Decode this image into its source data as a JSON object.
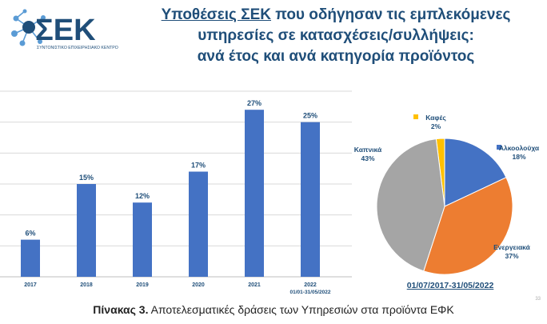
{
  "logo": {
    "text": "ΣΕΚ",
    "subtitle": "ΣΥΝΤΟΝΙΣΤΙΚΟ ΕΠΙΧΕΙΡΗΣΙΑΚΟ ΚΕΝΤΡΟ",
    "icon": "molecule-network-icon",
    "color": "#1f4e79",
    "accent": "#5a9bd5"
  },
  "title": {
    "line1_underlined": "Υποθέσεις ΣΕΚ",
    "line1_rest": " που οδήγησαν τις εμπλεκόμενες",
    "line2": "υπηρεσίες σε  κατασχέσεις/συλλήψεις:",
    "line3": "ανά έτος και ανά κατηγορία προϊόντος",
    "color": "#1f4e79"
  },
  "chart_data": [
    {
      "type": "bar",
      "categories": [
        "2017",
        "2018",
        "2019",
        "2020",
        "2021",
        "2022"
      ],
      "category_sublabels": [
        "",
        "",
        "",
        "",
        "",
        "01/01-31/05/2022"
      ],
      "values": [
        6,
        15,
        12,
        17,
        27,
        25
      ],
      "value_labels": [
        "6%",
        "15%",
        "12%",
        "17%",
        "27%",
        "25%"
      ],
      "unit": "%",
      "ylim": [
        0,
        30
      ],
      "grid": true,
      "color": "#4472c4"
    },
    {
      "type": "pie",
      "labels": [
        "Καφές",
        "Αλκοολούχα",
        "Ενεργειακά",
        "Καπνικά"
      ],
      "values": [
        2,
        18,
        37,
        43
      ],
      "value_labels": [
        "2%",
        "18%",
        "37%",
        "43%"
      ],
      "colors": [
        "#ffc000",
        "#4472c4",
        "#ed7d31",
        "#a5a5a5"
      ],
      "label_color": "#1f4e79"
    }
  ],
  "period_label": "01/07/2017-31/05/2022",
  "caption": {
    "bold": "Πίνακας 3.",
    "rest": " Αποτελεσματικές δράσεις των Υπηρεσιών στα προϊόντα ΕΦΚ"
  },
  "page_number": "33"
}
